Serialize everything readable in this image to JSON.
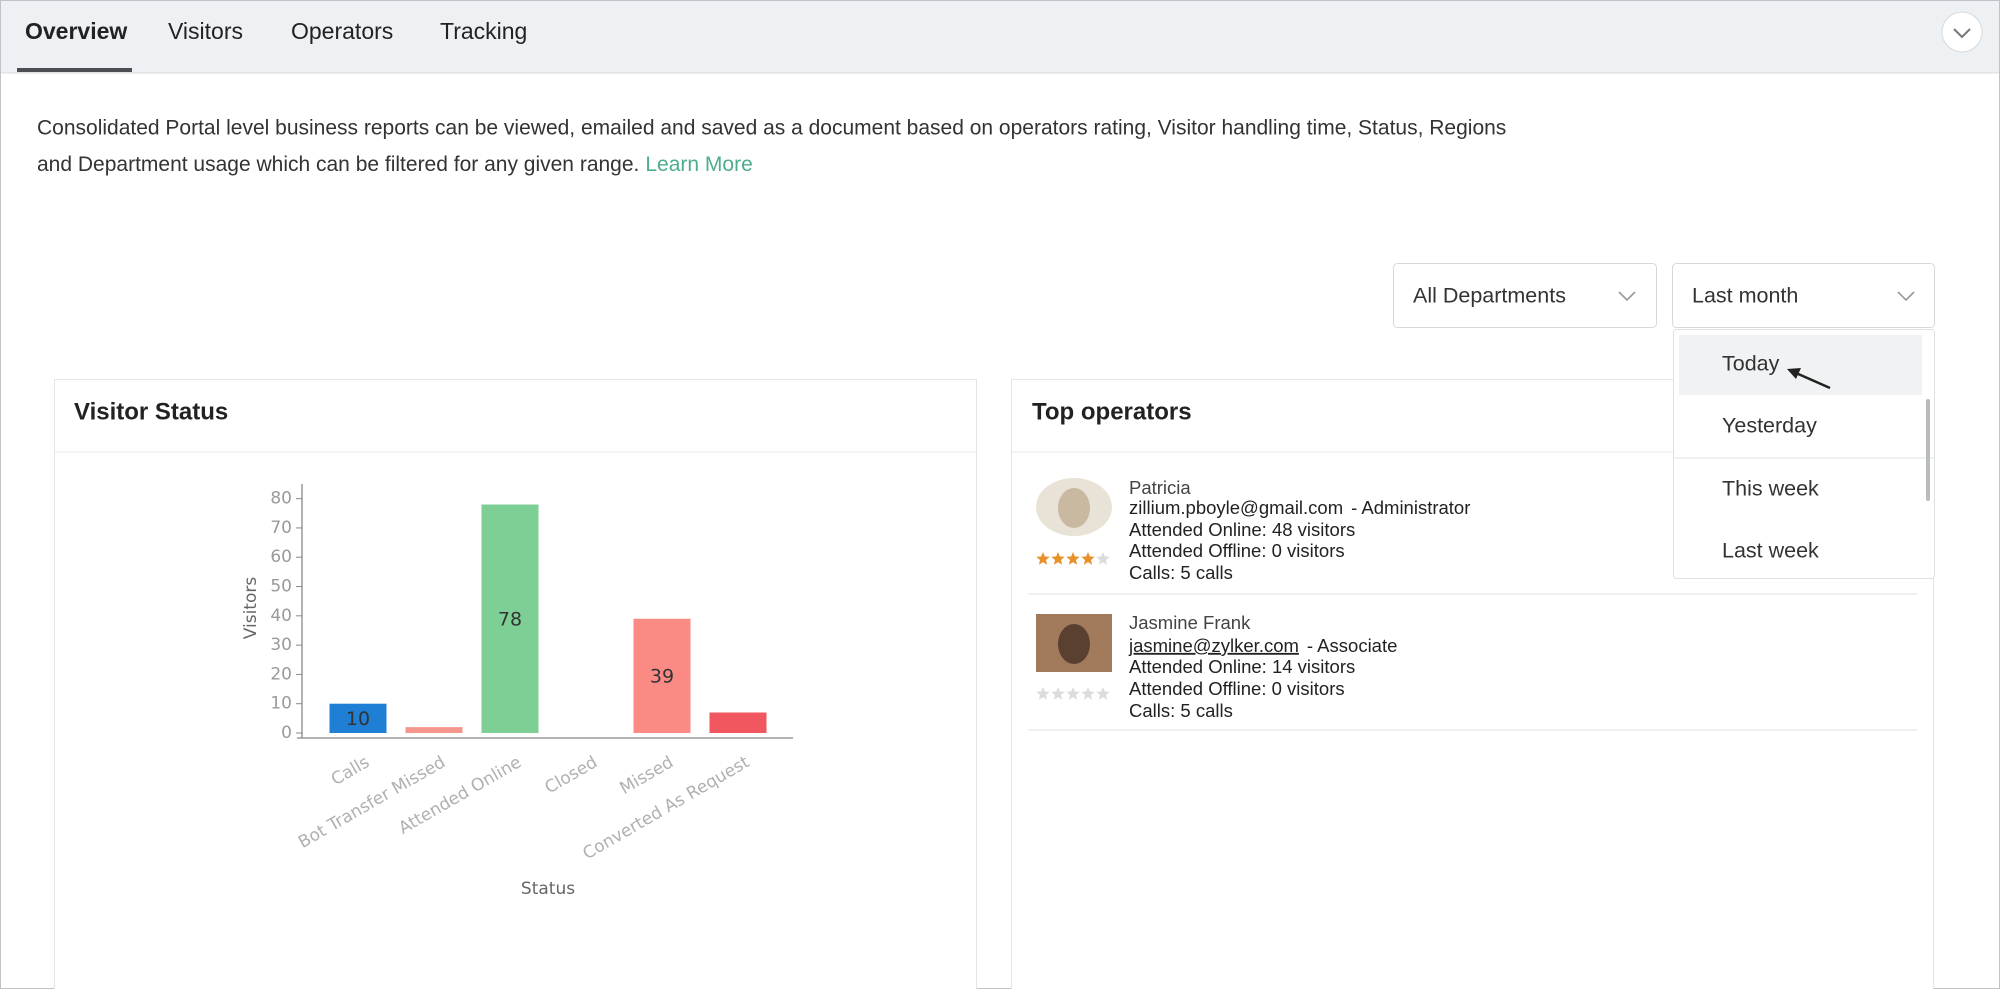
{
  "tabs": [
    "Overview",
    "Visitors",
    "Operators",
    "Tracking"
  ],
  "description": {
    "line1": "Consolidated Portal level business reports can be viewed, emailed and saved as a document based on operators rating, Visitor handling time, Status, Regions",
    "line2": "and Department usage which can be filtered for any given range.",
    "link": "Learn More"
  },
  "filters": {
    "department": "All Departments",
    "period": "Last month",
    "period_options": [
      "Today",
      "Yesterday",
      "This week",
      "Last week"
    ]
  },
  "visitor_panel": {
    "title": "Visitor Status"
  },
  "chart_data": {
    "type": "bar",
    "xlabel": "Status",
    "ylabel": "Visitors",
    "categories": [
      "Calls",
      "Bot Transfer Missed",
      "Attended Online",
      "Closed",
      "Missed",
      "Converted As Request"
    ],
    "values": [
      10,
      2,
      78,
      0,
      39,
      7
    ],
    "colors": [
      "#1f7fd4",
      "#f4968c",
      "#7dcf95",
      "#9e9e9e",
      "#fb8a85",
      "#f0575f"
    ],
    "ylim": [
      0,
      85
    ],
    "yticks": [
      0,
      10,
      20,
      30,
      40,
      50,
      60,
      70,
      80
    ],
    "grid": false
  },
  "operators_panel": {
    "title": "Top operators",
    "operators": [
      {
        "name": "Patricia",
        "email": "zillium.pboyle@gmail.com",
        "role": "- Administrator",
        "online": "Attended Online: 48 visitors",
        "offline": "Attended Offline: 0 visitors",
        "calls": "Calls: 5 calls",
        "rating": 4
      },
      {
        "name": "Jasmine Frank",
        "email": "jasmine@zylker.com",
        "role": "- Associate",
        "online": "Attended Online: 14 visitors",
        "offline": "Attended Offline: 0 visitors",
        "calls": "Calls: 5 calls",
        "rating": 0
      }
    ]
  }
}
